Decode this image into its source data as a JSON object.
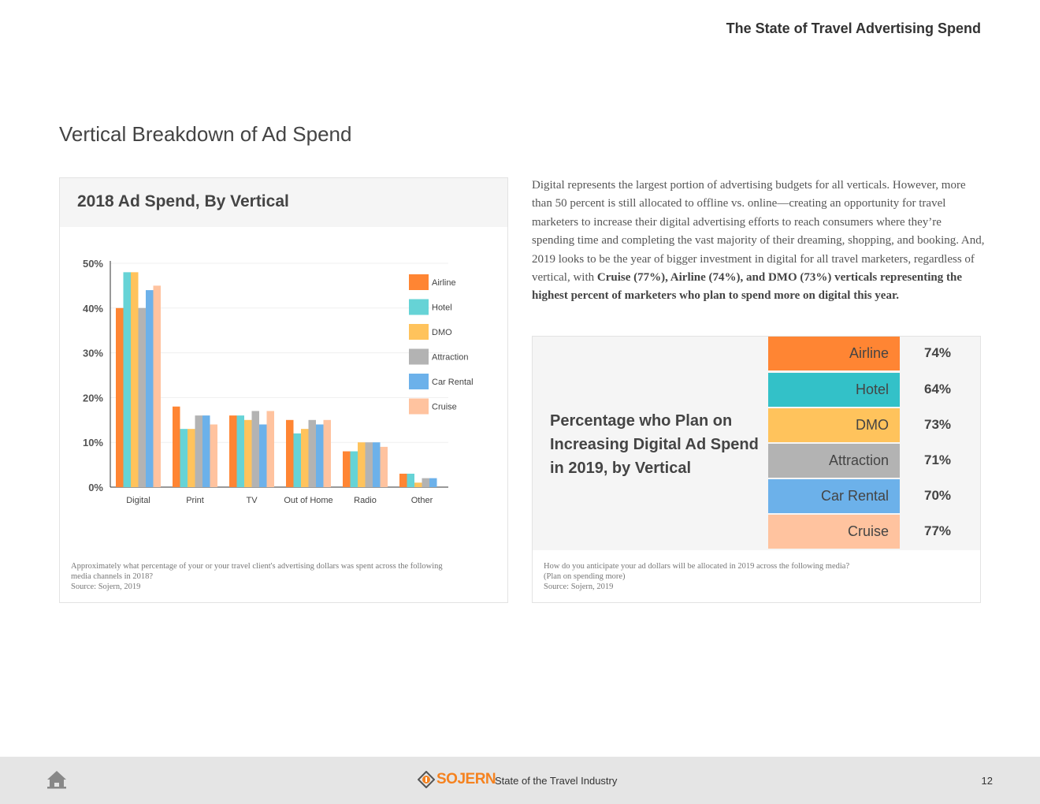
{
  "header": {
    "title": "The State of Travel Advertising Spend"
  },
  "section_title": "Vertical Breakdown of Ad Spend",
  "left_card": {
    "title": "2018 Ad Spend, By Vertical",
    "note_line1": "Approximately what percentage of your or your travel client's advertising dollars was spent across the following",
    "note_line2": "media channels in 2018?",
    "note_source": "Source: Sojern, 2019"
  },
  "chart_data": {
    "type": "bar",
    "title": "2018 Ad Spend, By Vertical",
    "categories": [
      "Digital",
      "Print",
      "TV",
      "Out of Home",
      "Radio",
      "Other"
    ],
    "series": [
      {
        "name": "Airline",
        "color": "#ff8533",
        "values": [
          40,
          18,
          16,
          15,
          8,
          3
        ]
      },
      {
        "name": "Hotel",
        "color": "#66d3d6",
        "values": [
          48,
          13,
          16,
          12,
          8,
          3
        ]
      },
      {
        "name": "DMO",
        "color": "#ffc35c",
        "values": [
          48,
          13,
          15,
          13,
          10,
          1
        ]
      },
      {
        "name": "Attraction",
        "color": "#b3b3b3",
        "values": [
          40,
          16,
          17,
          15,
          10,
          2
        ]
      },
      {
        "name": "Car Rental",
        "color": "#6cb1ea",
        "values": [
          44,
          16,
          14,
          14,
          10,
          2
        ]
      },
      {
        "name": "Cruise",
        "color": "#ffc39f",
        "values": [
          45,
          14,
          17,
          15,
          9,
          0
        ]
      }
    ],
    "yticks": [
      "0%",
      "10%",
      "20%",
      "30%",
      "40%",
      "50%"
    ],
    "ylim": [
      0,
      50
    ],
    "grid": true,
    "legend": "right"
  },
  "body_text": {
    "plain": "Digital represents the largest portion of advertising budgets for all verticals. However, more than 50 percent is still allocated to offline vs. online—creating an opportunity for travel marketers to increase their digital advertising efforts to reach consumers where they’re spending time and completing the vast majority of their dreaming, shopping, and booking. And, 2019 looks to be the year of bigger investment in digital for all travel marketers, regardless of vertical, with ",
    "bold": "Cruise (77%), Airline (74%), and DMO (73%) verticals representing the highest percent of marketers who plan to spend more on digital this year."
  },
  "right_card": {
    "title": "Percentage who Plan on Increasing Digital Ad Spend in 2019, by Vertical",
    "rows": [
      {
        "label": "Airline",
        "value": "74%",
        "color": "#ff8533"
      },
      {
        "label": "Hotel",
        "value": "64%",
        "color": "#33c1c8"
      },
      {
        "label": "DMO",
        "value": "73%",
        "color": "#ffc35c"
      },
      {
        "label": "Attraction",
        "value": "71%",
        "color": "#b3b3b3"
      },
      {
        "label": "Car Rental",
        "value": "70%",
        "color": "#6cb1ea"
      },
      {
        "label": "Cruise",
        "value": "77%",
        "color": "#ffc39f"
      }
    ],
    "note_line1": "How do you anticipate your ad dollars will be allocated in 2019 across the following media?",
    "note_line2": "(Plan on spending more)",
    "note_source": "Source: Sojern, 2019"
  },
  "footer": {
    "home_icon": "home-icon",
    "logo_text": "SOJERN",
    "logo_color": "#f5821f",
    "title": "State of the Travel Industry",
    "page_number": "12"
  }
}
